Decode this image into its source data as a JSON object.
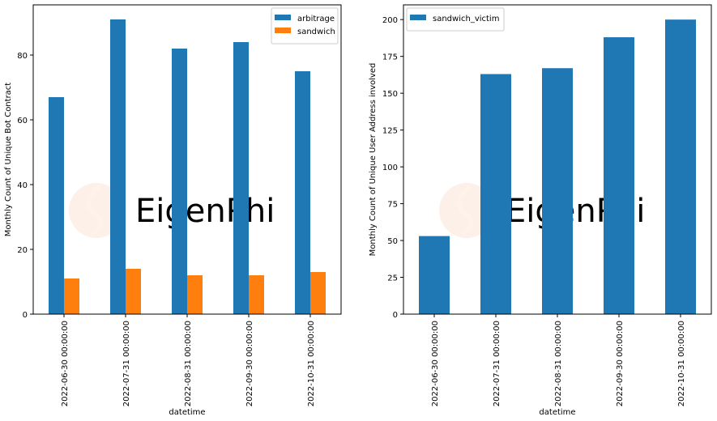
{
  "watermark": "EigenPhi",
  "colors": {
    "arbitrage": "#1f77b4",
    "sandwich": "#ff7f0e",
    "sandwich_victim": "#1f77b4"
  },
  "chart_data": [
    {
      "type": "bar",
      "title": "",
      "xlabel": "datetime",
      "ylabel": "Monthly Count of Unique Bot Contract",
      "categories": [
        "2022-06-30 00:00:00",
        "2022-07-31 00:00:00",
        "2022-08-31 00:00:00",
        "2022-09-30 00:00:00",
        "2022-10-31 00:00:00"
      ],
      "series": [
        {
          "name": "arbitrage",
          "values": [
            67,
            91,
            82,
            84,
            75
          ]
        },
        {
          "name": "sandwich",
          "values": [
            11,
            14,
            12,
            12,
            13
          ]
        }
      ],
      "ylim": [
        0,
        95.5
      ],
      "yticks": [
        0,
        20,
        40,
        60,
        80
      ],
      "legend": "top-right",
      "grid": false
    },
    {
      "type": "bar",
      "title": "",
      "xlabel": "datetime",
      "ylabel": "Monthly Count of Unique User Address involved",
      "categories": [
        "2022-06-30 00:00:00",
        "2022-07-31 00:00:00",
        "2022-08-31 00:00:00",
        "2022-09-30 00:00:00",
        "2022-10-31 00:00:00"
      ],
      "series": [
        {
          "name": "sandwich_victim",
          "values": [
            53,
            163,
            167,
            188,
            200
          ]
        }
      ],
      "ylim": [
        0,
        210
      ],
      "yticks": [
        0,
        25,
        50,
        75,
        100,
        125,
        150,
        175,
        200
      ],
      "legend": "top-left",
      "grid": false
    }
  ]
}
